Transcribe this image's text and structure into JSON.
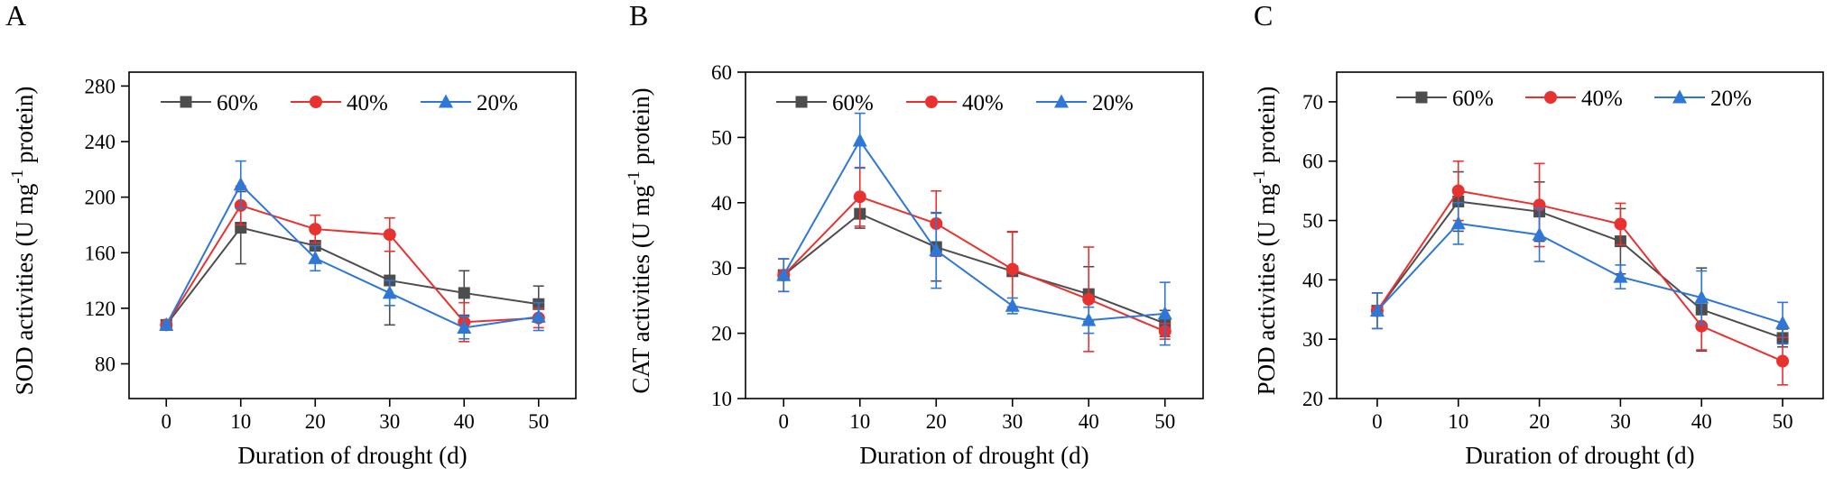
{
  "figure": {
    "chart_data": [
      {
        "type": "line",
        "panel": "A",
        "title": "",
        "xlabel": "Duration of drought (d)",
        "ylabel": {
          "prefix": "SOD activities (U mg",
          "superscript": "-1",
          "suffix": " protein)"
        },
        "x": [
          0,
          10,
          20,
          30,
          40,
          50
        ],
        "xticks": [
          0,
          10,
          20,
          30,
          40,
          50
        ],
        "xlim": [
          -5,
          55
        ],
        "yticks": [
          80,
          120,
          160,
          200,
          240,
          280
        ],
        "ylim": [
          55,
          290
        ],
        "legend_position": "top",
        "series": [
          {
            "name": "60%",
            "color": "#4d4d4d",
            "marker": "square",
            "values": [
              108,
              178,
              165,
              140,
              131,
              123
            ],
            "errors": [
              2,
              26,
              2,
              32,
              16,
              13
            ]
          },
          {
            "name": "40%",
            "color": "#e8322f",
            "marker": "circle",
            "values": [
              108,
              194,
              177,
              173,
              110,
              113
            ],
            "errors": [
              2,
              14,
              10,
              12,
              14,
              7
            ]
          },
          {
            "name": "20%",
            "color": "#2f77d6",
            "marker": "triangle",
            "values": [
              108,
              209,
              156,
              131,
              106,
              114
            ],
            "errors": [
              2,
              17,
              9,
              9,
              8,
              10
            ]
          }
        ]
      },
      {
        "type": "line",
        "panel": "B",
        "title": "",
        "xlabel": "Duration of drought (d)",
        "ylabel": {
          "prefix": "CAT activities (U mg",
          "superscript": "-1",
          "suffix": " protein)"
        },
        "x": [
          0,
          10,
          20,
          30,
          40,
          50
        ],
        "xticks": [
          0,
          10,
          20,
          30,
          40,
          50
        ],
        "xlim": [
          -5,
          55
        ],
        "yticks": [
          10,
          20,
          30,
          40,
          50,
          60
        ],
        "ylim": [
          10,
          60
        ],
        "legend_position": "top",
        "series": [
          {
            "name": "60%",
            "color": "#4d4d4d",
            "marker": "square",
            "values": [
              28.9,
              38.3,
              33.2,
              29.5,
              26.0,
              21.5
            ],
            "errors": [
              2.5,
              2.2,
              5.2,
              6.0,
              4.2,
              2.0
            ]
          },
          {
            "name": "40%",
            "color": "#e8322f",
            "marker": "circle",
            "values": [
              28.9,
              40.9,
              36.8,
              29.8,
              25.2,
              20.3
            ],
            "errors": [
              2.5,
              4.5,
              5.0,
              5.8,
              8.0,
              1.2
            ]
          },
          {
            "name": "20%",
            "color": "#2f77d6",
            "marker": "triangle",
            "values": [
              28.9,
              49.5,
              32.7,
              24.2,
              22.0,
              23.0
            ],
            "errors": [
              2.5,
              4.2,
              5.8,
              1.2,
              2.0,
              4.8
            ]
          }
        ]
      },
      {
        "type": "line",
        "panel": "C",
        "title": "",
        "xlabel": "Duration of drought (d)",
        "ylabel": {
          "prefix": "POD activities (U mg",
          "superscript": "-1",
          "suffix": " protein)"
        },
        "x": [
          0,
          10,
          20,
          30,
          40,
          50
        ],
        "xticks": [
          0,
          10,
          20,
          30,
          40,
          50
        ],
        "xlim": [
          -5,
          55
        ],
        "yticks": [
          20,
          30,
          40,
          50,
          60,
          70
        ],
        "ylim": [
          20,
          75
        ],
        "legend_position": "top",
        "series": [
          {
            "name": "60%",
            "color": "#4d4d4d",
            "marker": "square",
            "values": [
              34.8,
              53.2,
              51.5,
              46.5,
              35.0,
              30.2
            ],
            "errors": [
              3.0,
              5.0,
              5.0,
              5.5,
              7.0,
              1.5
            ]
          },
          {
            "name": "40%",
            "color": "#e8322f",
            "marker": "circle",
            "values": [
              34.8,
              55.0,
              52.6,
              49.4,
              32.2,
              26.3
            ],
            "errors": [
              3.0,
              5.0,
              7.0,
              3.5,
              4.0,
              4.0
            ]
          },
          {
            "name": "20%",
            "color": "#2f77d6",
            "marker": "triangle",
            "values": [
              34.8,
              49.5,
              47.6,
              40.5,
              37.0,
              32.7
            ],
            "errors": [
              3.0,
              3.5,
              4.5,
              2.0,
              4.5,
              3.5
            ]
          }
        ]
      }
    ]
  }
}
